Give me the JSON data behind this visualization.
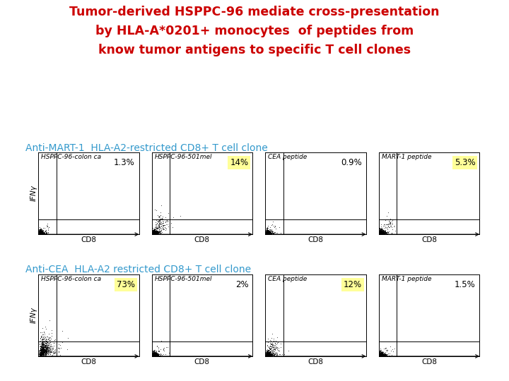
{
  "title_line1": "Tumor-derived HSPPC-96 mediate cross-presentation",
  "title_line2": "by HLA-A*0201+ monocytes  of peptides from",
  "title_line3": "know tumor antigens to specific T cell clones",
  "title_color": "#cc0000",
  "title_fontsize": 12.5,
  "subtitle1": "Anti-MART-1  HLA-A2-restricted CD8+ T cell clone",
  "subtitle2": "Anti-CEA  HLA-A2 restricted CD8+ T cell clone",
  "subtitle_color": "#3399cc",
  "subtitle_fontsize": 10,
  "row1_labels": [
    "HSPPC-96-colon ca",
    "HSPPC-96-501mel",
    "CEA peptide",
    "MART-1 peptide"
  ],
  "row2_labels": [
    "HSPPC-96-colon ca",
    "HSPPC-96-501mel",
    "CEA peptide",
    "MART-1 peptide"
  ],
  "row1_percentages": [
    "1.3%",
    "14%",
    "0.9%",
    "5.3%"
  ],
  "row2_percentages": [
    "73%",
    "2%",
    "12%",
    "1.5%"
  ],
  "row1_highlighted": [
    false,
    true,
    false,
    true
  ],
  "row2_highlighted": [
    true,
    false,
    true,
    false
  ],
  "highlight_color": "#ffff99",
  "xlabel": "CD8",
  "ylabel": "IFNγ",
  "bg_color": "#ffffff",
  "plot_bg": "#ffffff",
  "dot_color": "#000000",
  "axis_label_fontsize": 7.5,
  "pct_fontsize": 8.5,
  "panel_label_fontsize": 6.5
}
